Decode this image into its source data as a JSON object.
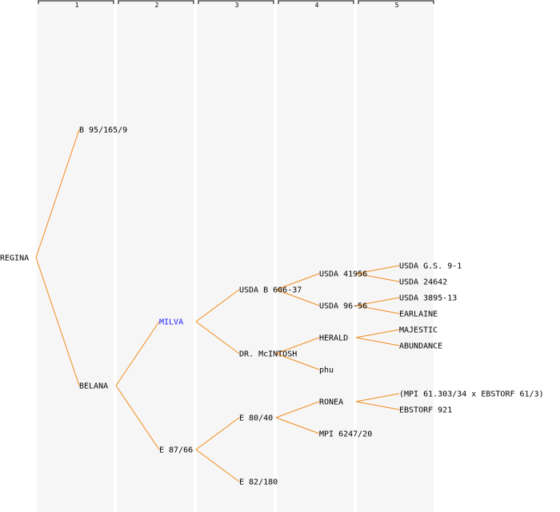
{
  "generations": [
    "1",
    "2",
    "3",
    "4",
    "5"
  ],
  "colors": {
    "edge": "#f28c1c",
    "highlight": "#1a1aff",
    "band": "#f6f6f6",
    "text": "#000000"
  },
  "nodes": [
    {
      "id": "regina",
      "label": "REGINA",
      "gen": 0,
      "parent": null
    },
    {
      "id": "b95",
      "label": "B 95/165/9",
      "gen": 1,
      "parent": "regina"
    },
    {
      "id": "belana",
      "label": "BELANA",
      "gen": 1,
      "parent": "regina"
    },
    {
      "id": "milva",
      "label": "MILVA",
      "gen": 2,
      "parent": "belana",
      "highlight": true
    },
    {
      "id": "e8766",
      "label": "E 87/66",
      "gen": 2,
      "parent": "belana"
    },
    {
      "id": "usdab606",
      "label": "USDA B 606-37",
      "gen": 3,
      "parent": "milva"
    },
    {
      "id": "drmcintosh",
      "label": "DR. McINTOSH",
      "gen": 3,
      "parent": "milva"
    },
    {
      "id": "e8040",
      "label": "E 80/40",
      "gen": 3,
      "parent": "e8766"
    },
    {
      "id": "e82180",
      "label": "E 82/180",
      "gen": 3,
      "parent": "e8766"
    },
    {
      "id": "usda41956",
      "label": "USDA 41956",
      "gen": 4,
      "parent": "usdab606"
    },
    {
      "id": "usda9656",
      "label": "USDA 96-56",
      "gen": 4,
      "parent": "usdab606"
    },
    {
      "id": "herald",
      "label": "HERALD",
      "gen": 4,
      "parent": "drmcintosh"
    },
    {
      "id": "phu",
      "label": "phu",
      "gen": 4,
      "parent": "drmcintosh"
    },
    {
      "id": "ronea",
      "label": "RONEA",
      "gen": 4,
      "parent": "e8040"
    },
    {
      "id": "mpi6247",
      "label": "MPI 6247/20",
      "gen": 4,
      "parent": "e8040"
    },
    {
      "id": "usdags91",
      "label": "USDA G.S. 9-1",
      "gen": 5,
      "parent": "usda41956"
    },
    {
      "id": "usda24642",
      "label": "USDA 24642",
      "gen": 5,
      "parent": "usda41956"
    },
    {
      "id": "usda3895",
      "label": "USDA 3895-13",
      "gen": 5,
      "parent": "usda9656"
    },
    {
      "id": "earlaine",
      "label": "EARLAINE",
      "gen": 5,
      "parent": "usda9656"
    },
    {
      "id": "majestic",
      "label": "MAJESTIC",
      "gen": 5,
      "parent": "herald"
    },
    {
      "id": "abundance",
      "label": "ABUNDANCE",
      "gen": 5,
      "parent": "herald"
    },
    {
      "id": "mpicross",
      "label": "(MPI 61.303/34 x EBSTORF 61/3)",
      "gen": 5,
      "parent": "ronea"
    },
    {
      "id": "ebstorf921",
      "label": "EBSTORF 921",
      "gen": 5,
      "parent": "ronea"
    }
  ]
}
